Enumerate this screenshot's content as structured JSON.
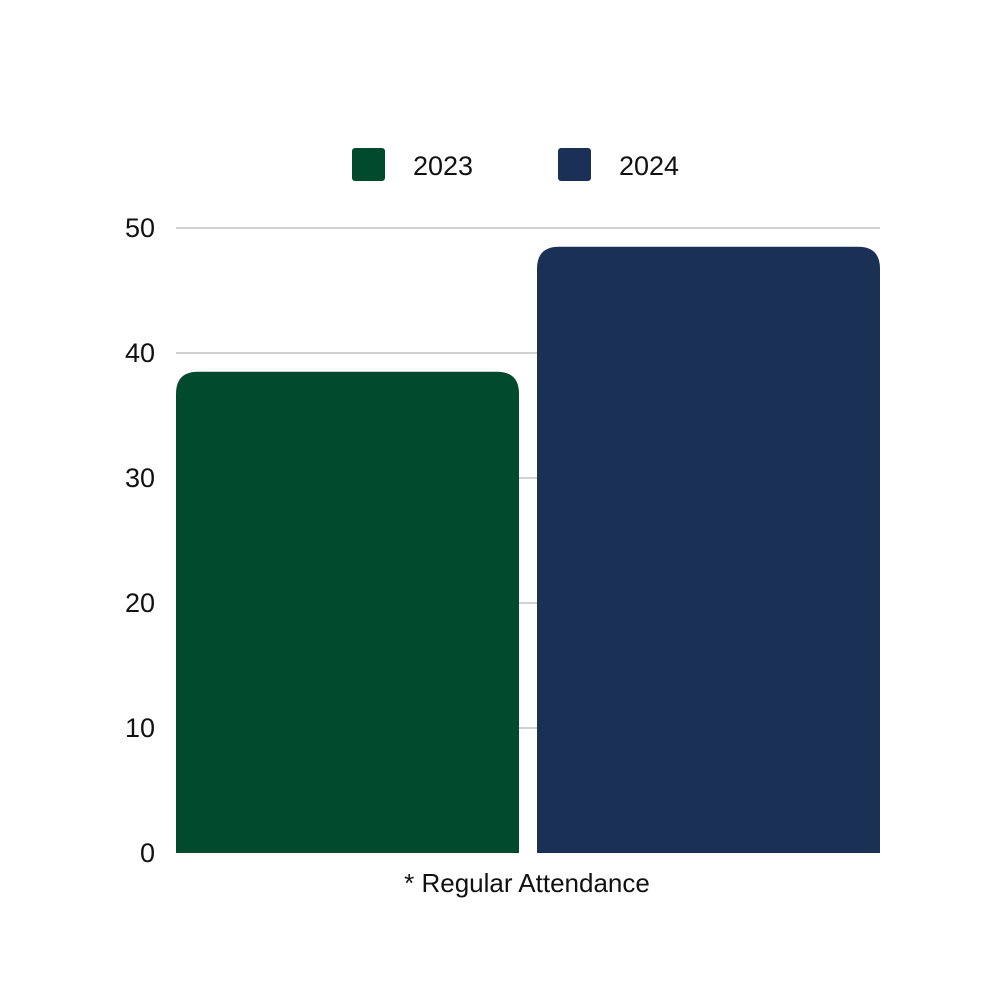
{
  "chart_data": {
    "type": "bar",
    "categories": [
      "* Regular Attendance"
    ],
    "series": [
      {
        "name": "2023",
        "values": [
          38.5
        ],
        "color": "#024a2d"
      },
      {
        "name": "2024",
        "values": [
          48.5
        ],
        "color": "#1a3055"
      }
    ],
    "ylim": [
      0,
      50
    ],
    "yticks": [
      0,
      10,
      20,
      30,
      40,
      50
    ],
    "grid": true,
    "legend_position": "top-center"
  }
}
